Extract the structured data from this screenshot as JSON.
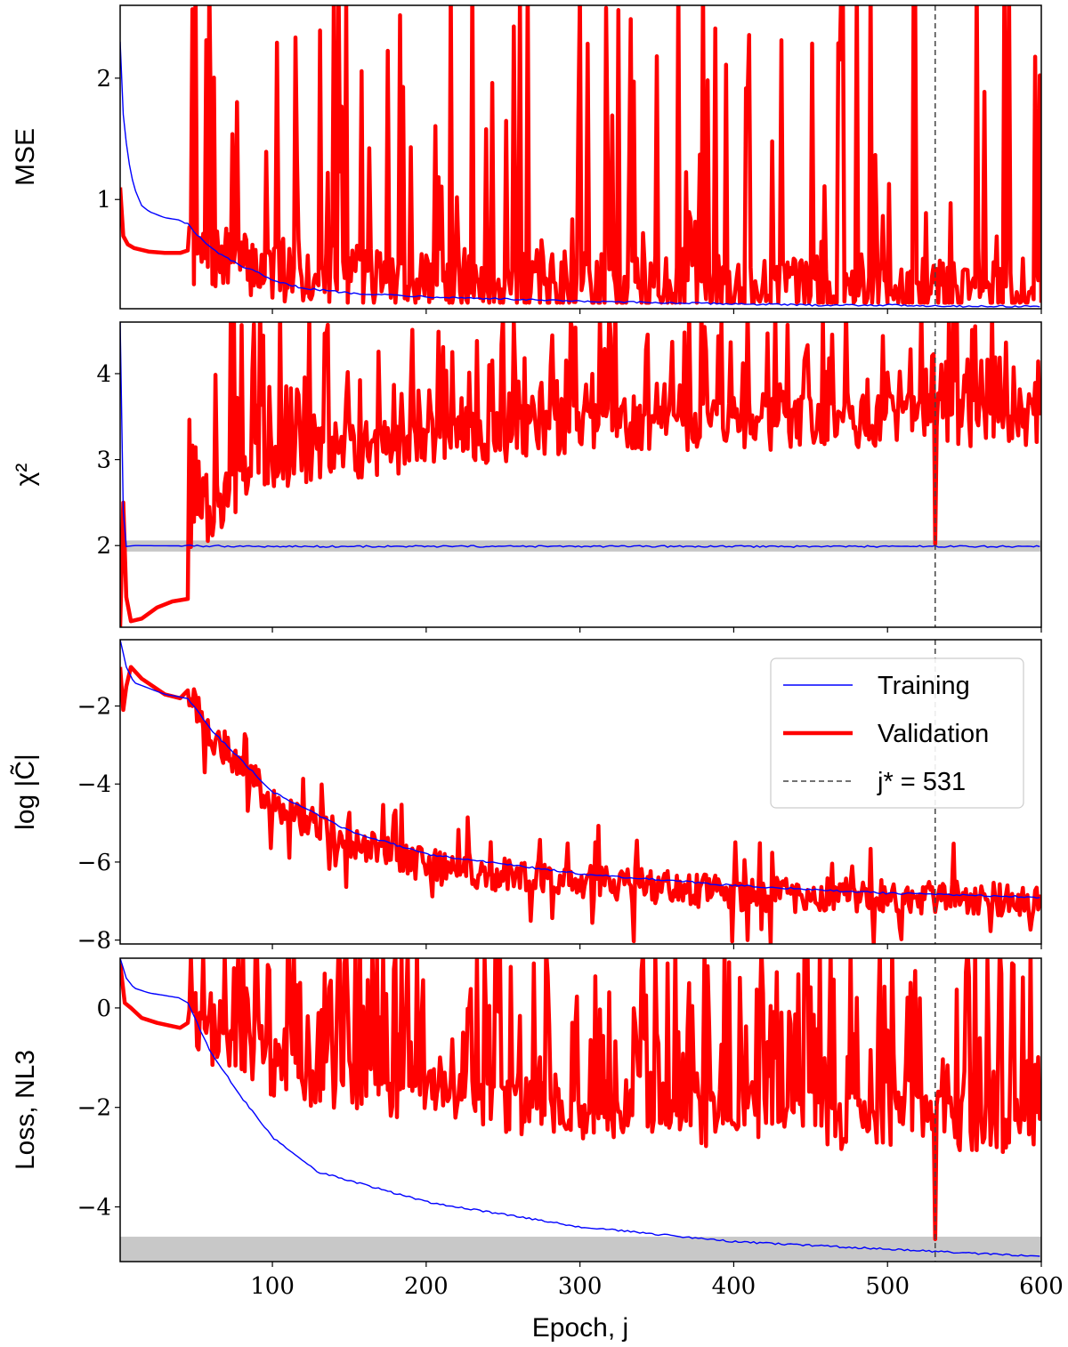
{
  "chart_data": {
    "type": "line",
    "x_axis": {
      "label": "Epoch, j",
      "ticks": [
        100,
        200,
        300,
        400,
        500,
        600
      ],
      "range": [
        1,
        600
      ]
    },
    "legend": {
      "placement": "inside third panel, top-right",
      "entries": [
        {
          "label": "Training",
          "color": "#0000ff",
          "style": "thin solid"
        },
        {
          "label": "Validation",
          "color": "#ff0000",
          "style": "thick solid"
        },
        {
          "label": "j* = 531",
          "color": "#444444",
          "style": "dashed"
        }
      ]
    },
    "best_epoch": 531,
    "colors": {
      "training": "#0000ff",
      "validation": "#ff0000",
      "band": "#c8c8c8"
    },
    "panels": [
      {
        "ylabel": "MSE",
        "ylim": [
          0.1,
          2.6
        ],
        "yticks": [
          1,
          2
        ],
        "training": [
          [
            1,
            2.3
          ],
          [
            3,
            1.7
          ],
          [
            6,
            1.35
          ],
          [
            10,
            1.1
          ],
          [
            15,
            0.95
          ],
          [
            20,
            0.9
          ],
          [
            30,
            0.85
          ],
          [
            40,
            0.83
          ],
          [
            45,
            0.8
          ],
          [
            50,
            0.72
          ],
          [
            60,
            0.6
          ],
          [
            70,
            0.52
          ],
          [
            80,
            0.45
          ],
          [
            90,
            0.4
          ],
          [
            100,
            0.33
          ],
          [
            120,
            0.27
          ],
          [
            150,
            0.23
          ],
          [
            200,
            0.2
          ],
          [
            250,
            0.18
          ],
          [
            300,
            0.16
          ],
          [
            350,
            0.15
          ],
          [
            400,
            0.14
          ],
          [
            450,
            0.13
          ],
          [
            500,
            0.13
          ],
          [
            550,
            0.12
          ],
          [
            600,
            0.12
          ]
        ],
        "validation_start": [
          [
            1,
            1.1
          ],
          [
            3,
            0.7
          ],
          [
            6,
            0.63
          ],
          [
            10,
            0.6
          ],
          [
            20,
            0.57
          ],
          [
            30,
            0.56
          ],
          [
            40,
            0.56
          ],
          [
            45,
            0.58
          ]
        ],
        "validation_noise": {
          "seed": 7,
          "from": 46,
          "base": [
            [
              46,
              0.55
            ],
            [
              100,
              0.42
            ],
            [
              200,
              0.35
            ],
            [
              300,
              0.3
            ],
            [
              400,
              0.28
            ],
            [
              500,
              0.25
            ],
            [
              600,
              0.25
            ]
          ],
          "low": 0.15,
          "high": 2.6,
          "spike_prob": 0.18
        },
        "band": null
      },
      {
        "ylabel": "χ²",
        "ylim": [
          1.05,
          4.6
        ],
        "yticks": [
          2,
          3,
          4
        ],
        "training": [
          [
            1,
            4.6
          ],
          [
            3,
            2.4
          ],
          [
            5,
            1.99
          ],
          [
            10,
            2.0
          ],
          [
            100,
            1.99
          ],
          [
            600,
            1.99
          ]
        ],
        "validation_start": [
          [
            1,
            1.05
          ],
          [
            3,
            2.5
          ],
          [
            5,
            1.4
          ],
          [
            8,
            1.12
          ],
          [
            15,
            1.15
          ],
          [
            25,
            1.28
          ],
          [
            35,
            1.35
          ],
          [
            45,
            1.38
          ]
        ],
        "validation_noise": {
          "seed": 13,
          "from": 46,
          "base": [
            [
              46,
              2.2
            ],
            [
              100,
              3.0
            ],
            [
              300,
              3.4
            ],
            [
              600,
              3.5
            ]
          ],
          "low": 1.6,
          "high": 4.6,
          "spike_prob": 0.35
        },
        "band": [
          1.93,
          2.06
        ]
      },
      {
        "ylabel": "log |C̃|",
        "ylim": [
          -8.1,
          -0.3
        ],
        "yticks": [
          -8,
          -6,
          -4,
          -2
        ],
        "training": [
          [
            1,
            -0.3
          ],
          [
            5,
            -1.0
          ],
          [
            10,
            -1.4
          ],
          [
            30,
            -1.7
          ],
          [
            45,
            -1.8
          ],
          [
            60,
            -2.6
          ],
          [
            80,
            -3.4
          ],
          [
            100,
            -4.2
          ],
          [
            150,
            -5.2
          ],
          [
            200,
            -5.8
          ],
          [
            300,
            -6.3
          ],
          [
            400,
            -6.6
          ],
          [
            500,
            -6.8
          ],
          [
            600,
            -6.9
          ]
        ],
        "validation_start": [
          [
            1,
            -1.0
          ],
          [
            3,
            -2.1
          ],
          [
            5,
            -1.5
          ],
          [
            8,
            -1.0
          ],
          [
            15,
            -1.3
          ],
          [
            30,
            -1.7
          ],
          [
            40,
            -1.8
          ],
          [
            45,
            -1.6
          ]
        ],
        "validation_noise": {
          "seed": 21,
          "from": 46,
          "base": [
            [
              46,
              -1.7
            ],
            [
              60,
              -2.7
            ],
            [
              80,
              -3.5
            ],
            [
              100,
              -4.5
            ],
            [
              150,
              -5.5
            ],
            [
              200,
              -6.1
            ],
            [
              300,
              -6.5
            ],
            [
              400,
              -6.8
            ],
            [
              500,
              -6.9
            ],
            [
              600,
              -7.0
            ]
          ],
          "low": -8.1,
          "high": -0.3,
          "spike_prob": 0.08,
          "jitter": 0.45
        },
        "band": null
      },
      {
        "ylabel": "Loss, NL3",
        "ylim": [
          -5.1,
          1.0
        ],
        "yticks": [
          -4,
          -2,
          0
        ],
        "training": [
          [
            1,
            1.0
          ],
          [
            5,
            0.6
          ],
          [
            10,
            0.4
          ],
          [
            20,
            0.3
          ],
          [
            40,
            0.2
          ],
          [
            45,
            0.1
          ],
          [
            60,
            -0.9
          ],
          [
            80,
            -1.8
          ],
          [
            100,
            -2.6
          ],
          [
            130,
            -3.3
          ],
          [
            200,
            -3.9
          ],
          [
            300,
            -4.4
          ],
          [
            400,
            -4.7
          ],
          [
            500,
            -4.85
          ],
          [
            600,
            -5.0
          ]
        ],
        "validation_start": [
          [
            1,
            0.9
          ],
          [
            4,
            0.1
          ],
          [
            8,
            0.0
          ],
          [
            15,
            -0.2
          ],
          [
            25,
            -0.3
          ],
          [
            40,
            -0.4
          ],
          [
            45,
            -0.3
          ]
        ],
        "validation_noise": {
          "seed": 33,
          "from": 46,
          "base": [
            [
              46,
              -0.5
            ],
            [
              100,
              -1.2
            ],
            [
              200,
              -1.8
            ],
            [
              300,
              -2.0
            ],
            [
              400,
              -2.2
            ],
            [
              600,
              -2.3
            ]
          ],
          "low": -4.7,
          "high": 1.0,
          "spike_prob": 0.45
        },
        "band": [
          -5.1,
          -4.6
        ]
      }
    ]
  }
}
